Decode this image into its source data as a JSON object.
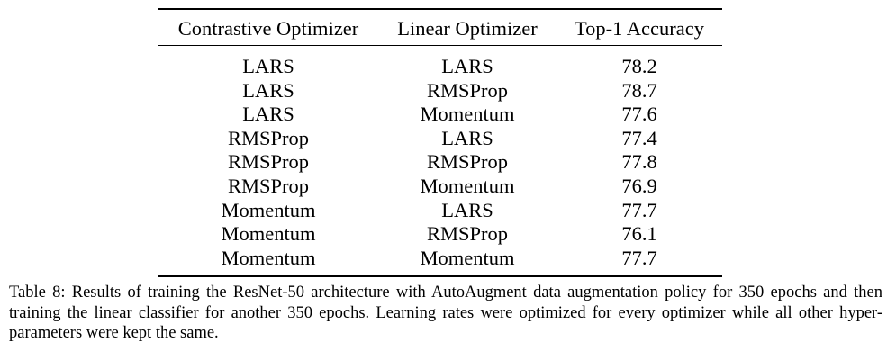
{
  "table": {
    "headers": [
      "Contrastive Optimizer",
      "Linear Optimizer",
      "Top-1 Accuracy"
    ],
    "rows": [
      [
        "LARS",
        "LARS",
        "78.2"
      ],
      [
        "LARS",
        "RMSProp",
        "78.7"
      ],
      [
        "LARS",
        "Momentum",
        "77.6"
      ],
      [
        "RMSProp",
        "LARS",
        "77.4"
      ],
      [
        "RMSProp",
        "RMSProp",
        "77.8"
      ],
      [
        "RMSProp",
        "Momentum",
        "76.9"
      ],
      [
        "Momentum",
        "LARS",
        "77.7"
      ],
      [
        "Momentum",
        "RMSProp",
        "76.1"
      ],
      [
        "Momentum",
        "Momentum",
        "77.7"
      ]
    ]
  },
  "caption": {
    "text": "Table 8: Results of training the ResNet-50 architecture with AutoAugment data augmentation policy for 350 epochs and then training the linear classifier for another 350 epochs. Learning rates were optimized for every optimizer while all other hyper-parameters were kept the same."
  }
}
